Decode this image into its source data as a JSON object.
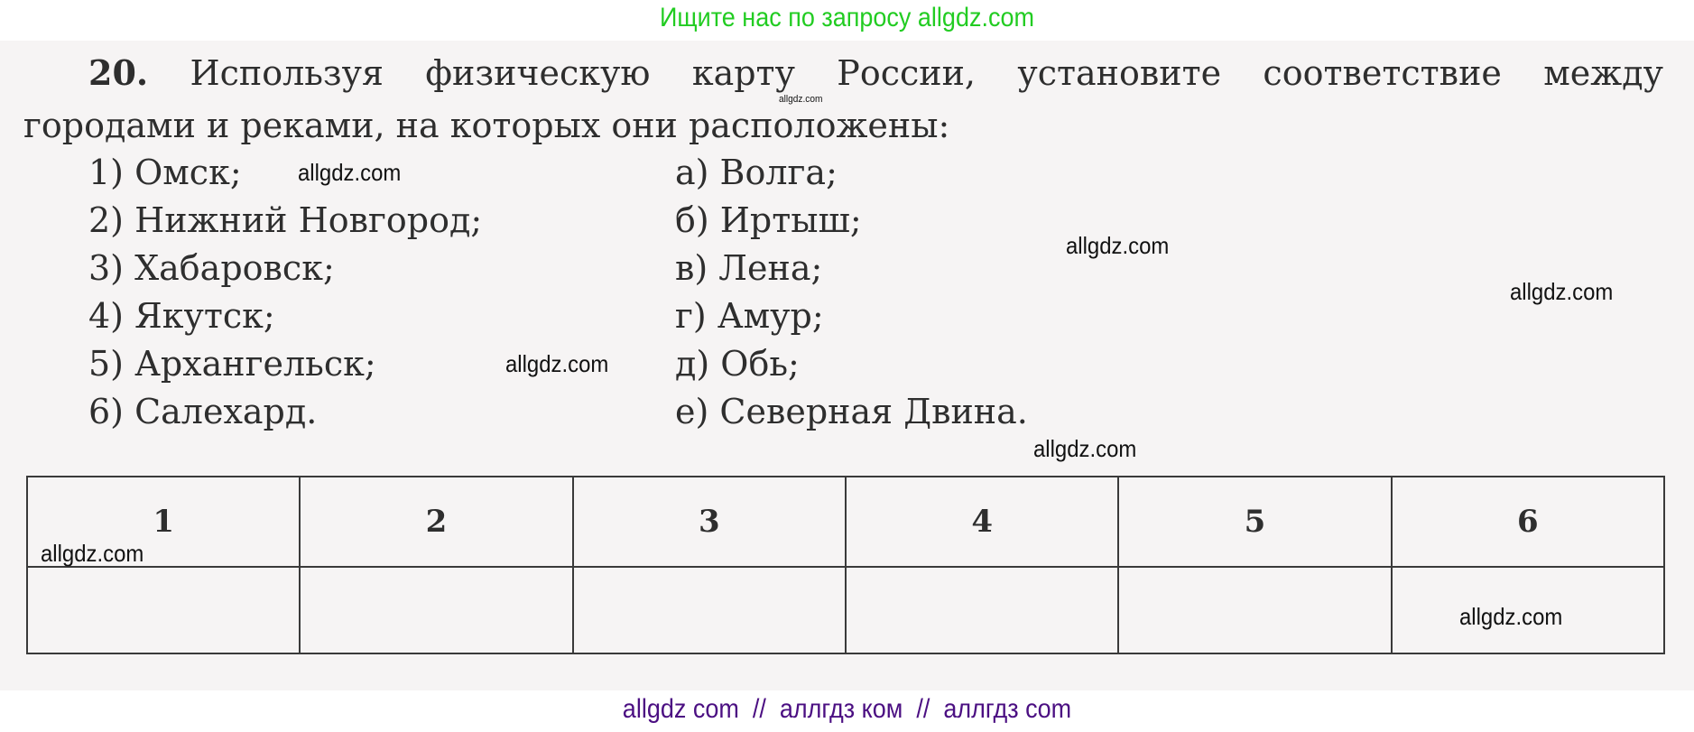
{
  "header_note": "Ищите нас по запросу allgdz.com",
  "task": {
    "number": "20.",
    "line1": "Используя физическую карту России, установите соответствие между",
    "line2": "городами и реками, на которых они расположены:"
  },
  "cities": [
    "1) Омск;",
    "2) Нижний Новгород;",
    "3) Хабаровск;",
    "4) Якутск;",
    "5) Архангельск;",
    "6) Салехард."
  ],
  "rivers": [
    "а) Волга;",
    "б) Иртыш;",
    "в) Лена;",
    "г) Амур;",
    "д) Обь;",
    "е) Северная Двина."
  ],
  "answer_table": {
    "headers": [
      "1",
      "2",
      "3",
      "4",
      "5",
      "6"
    ],
    "answers": [
      "",
      "",
      "",
      "",
      "",
      ""
    ]
  },
  "watermarks": [
    "allgdz.com",
    "allgdz.com",
    "allgdz.com",
    "allgdz.com",
    "allgdz.com",
    "allgdz.com",
    "allgdz.com",
    "allgdz.com"
  ],
  "footer": "allgdz com  //  аллгдз ком  //  аллгдз com",
  "colors": {
    "header_note": "#22cc22",
    "footer": "#4b0f82",
    "text": "#2e2e2e"
  }
}
